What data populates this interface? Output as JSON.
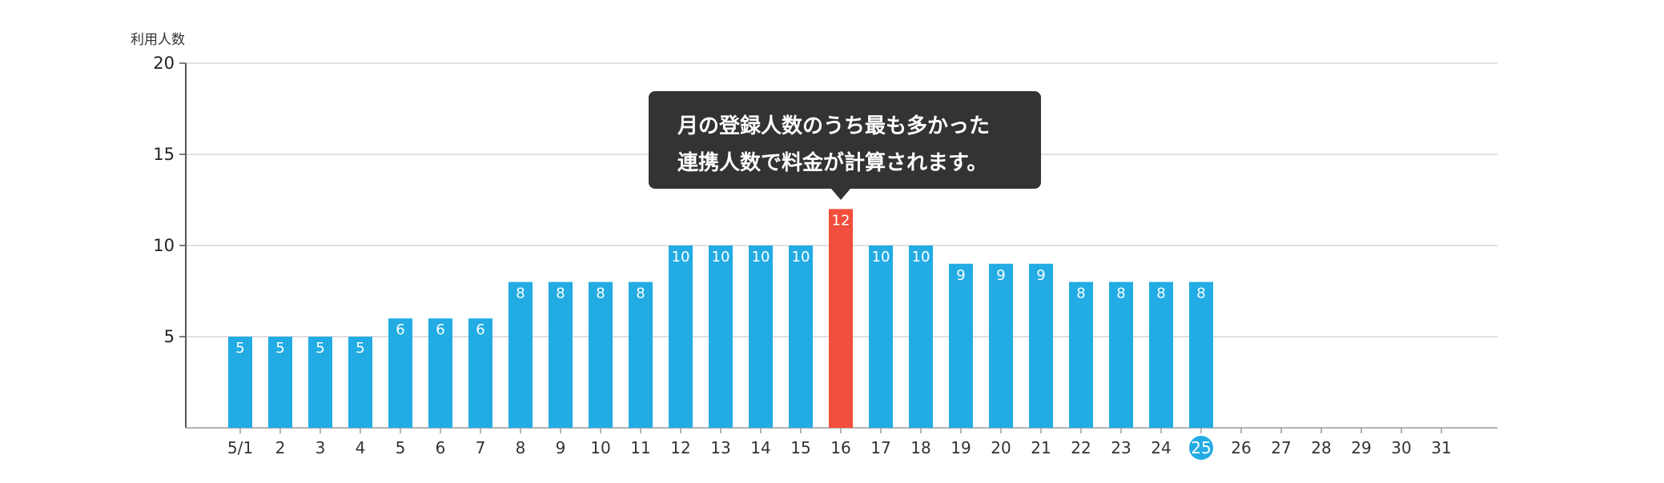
{
  "chart_data": {
    "type": "bar",
    "ylabel": "利用人数",
    "ylim": [
      0,
      20
    ],
    "yticks": [
      5,
      10,
      15,
      20
    ],
    "grid": true,
    "categories": [
      "5/1",
      "2",
      "3",
      "4",
      "5",
      "6",
      "7",
      "8",
      "9",
      "10",
      "11",
      "12",
      "13",
      "14",
      "15",
      "16",
      "17",
      "18",
      "19",
      "20",
      "21",
      "22",
      "23",
      "24",
      "25",
      "26",
      "27",
      "28",
      "29",
      "30",
      "31"
    ],
    "values": [
      5,
      5,
      5,
      5,
      6,
      6,
      6,
      8,
      8,
      8,
      8,
      10,
      10,
      10,
      10,
      12,
      10,
      10,
      9,
      9,
      9,
      8,
      8,
      8,
      8,
      null,
      null,
      null,
      null,
      null,
      null
    ],
    "highlight_category": "16",
    "current_day": "25",
    "tooltip": {
      "lines": [
        "月の登録人数のうち最も多かった",
        "連携人数で料金が計算されます。"
      ],
      "target_category": "16"
    },
    "colors": {
      "bar": "#22ACE3",
      "highlight": "#F24E3D",
      "current_day_badge": "#22ACE3",
      "grid": "#D6D6D6",
      "axis": "#555555",
      "tooltip_bg": "#333333"
    }
  }
}
